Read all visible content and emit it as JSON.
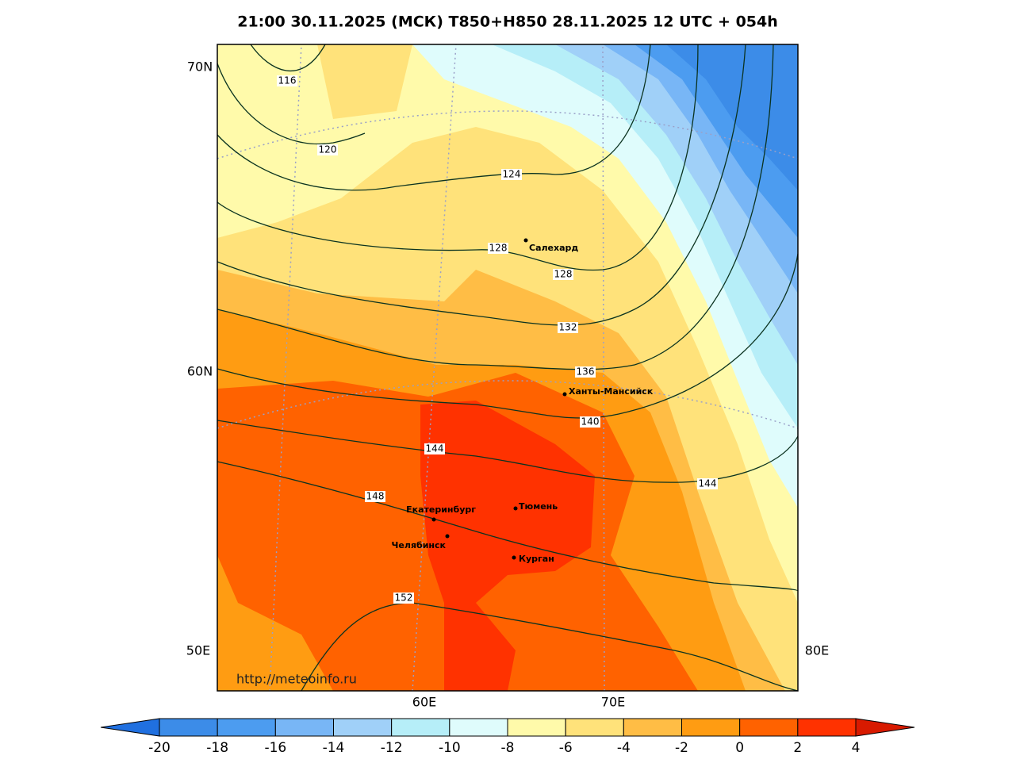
{
  "title": "21:00 30.11.2025 (МСК) T850+H850 28.11.2025 12 UTC + 054h",
  "axis_labels": {
    "lat": [
      "70N",
      "60N"
    ],
    "lon_left": "50E",
    "lon_right": "80E",
    "lon_bottom": [
      "60E",
      "70E"
    ]
  },
  "watermark": "http://meteoinfo.ru",
  "contour_labels": [
    116,
    120,
    124,
    128,
    128,
    132,
    136,
    140,
    144,
    144,
    148,
    152
  ],
  "cities": [
    "Салехард",
    "Ханты-Мансийск",
    "Екатеринбург",
    "Тюмень",
    "Челябинск",
    "Курган"
  ],
  "colorbar": {
    "ticks": [
      -20,
      -18,
      -16,
      -14,
      -12,
      -10,
      -8,
      -6,
      -4,
      -2,
      0,
      2,
      4
    ],
    "colors": [
      "#3c8ce8",
      "#4c9cf0",
      "#78b6f6",
      "#a0d0f8",
      "#b6eef8",
      "#dffcfc",
      "#fffaaa",
      "#ffe27a",
      "#ffbd45",
      "#ff9c12",
      "#ff6200",
      "#ff3200"
    ],
    "under_color": "#2070e0",
    "over_color": "#d81a00"
  }
}
